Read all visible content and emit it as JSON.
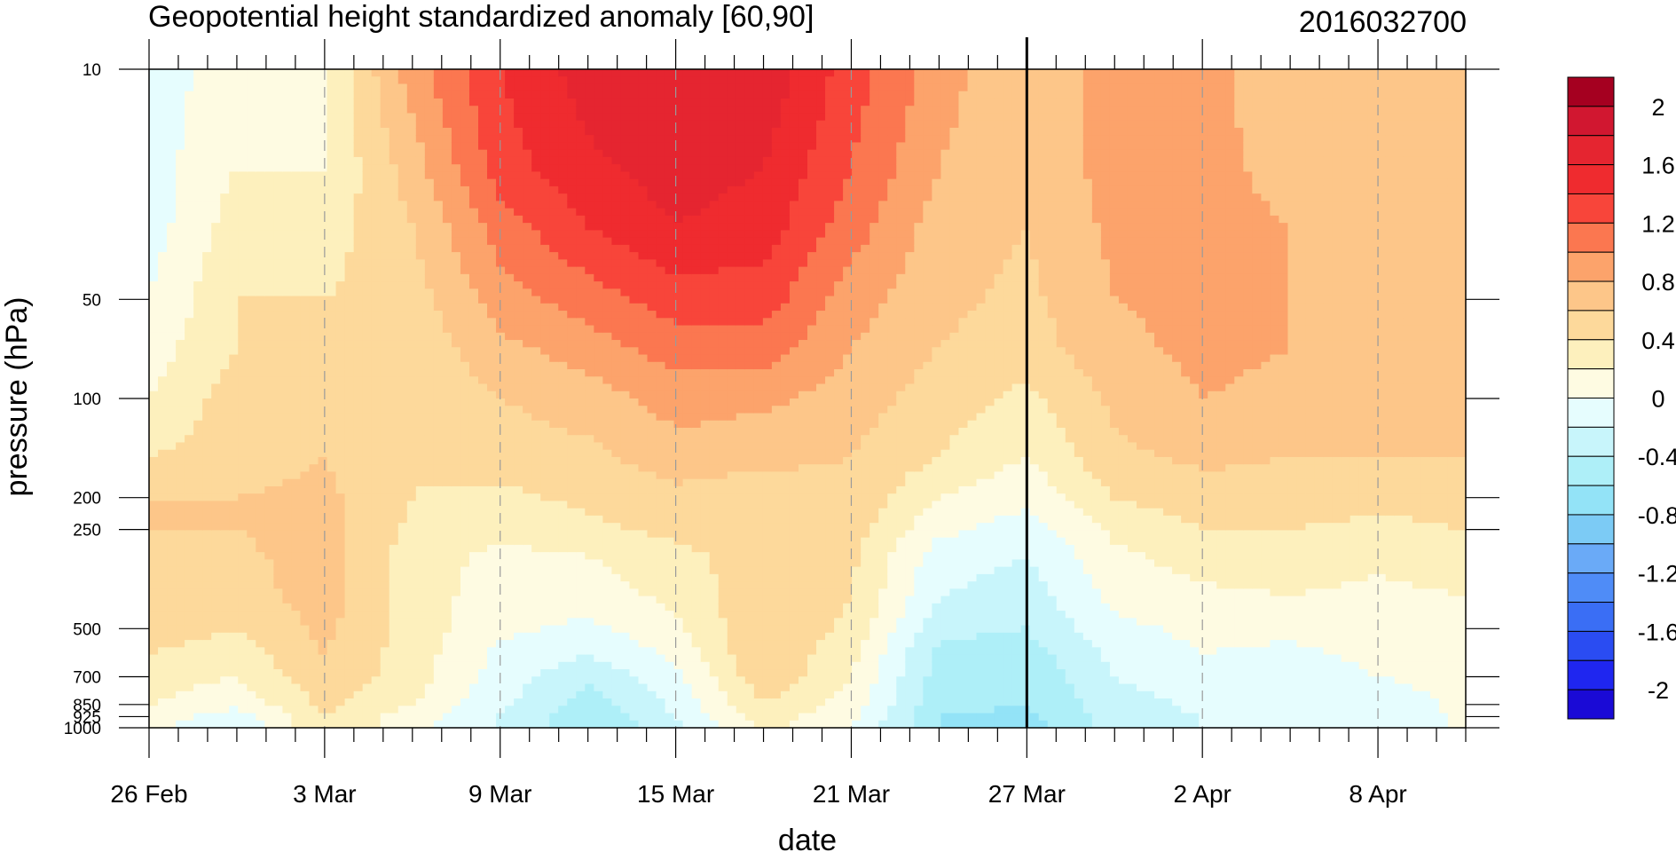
{
  "chart_data": {
    "type": "heatmap",
    "title": "Geopotential height standardized anomaly [60,90]",
    "subtitle": "2016032700",
    "xlabel": "date",
    "ylabel": "pressure (hPa)",
    "y_scale": "log",
    "y_reversed": true,
    "ylim": [
      1000,
      10
    ],
    "xlim": [
      "2016-02-26",
      "2016-04-11"
    ],
    "grid": "dashed vertical lines at labelled dates",
    "marker_date": "2016-03-27",
    "x_tick_labels": [
      {
        "date": "2016-02-26",
        "label": "26 Feb"
      },
      {
        "date": "2016-03-03",
        "label": "3 Mar"
      },
      {
        "date": "2016-03-09",
        "label": "9 Mar"
      },
      {
        "date": "2016-03-15",
        "label": "15 Mar"
      },
      {
        "date": "2016-03-21",
        "label": "21 Mar"
      },
      {
        "date": "2016-03-27",
        "label": "27 Mar"
      },
      {
        "date": "2016-04-02",
        "label": "2 Apr"
      },
      {
        "date": "2016-04-08",
        "label": "8 Apr"
      }
    ],
    "y_tick_labels": [
      {
        "p": 10,
        "label": "10"
      },
      {
        "p": 50,
        "label": "50"
      },
      {
        "p": 100,
        "label": "100"
      },
      {
        "p": 200,
        "label": "200"
      },
      {
        "p": 250,
        "label": "250"
      },
      {
        "p": 500,
        "label": "500"
      },
      {
        "p": 700,
        "label": "700"
      },
      {
        "p": 850,
        "label": "850"
      },
      {
        "p": 925,
        "label": "925"
      },
      {
        "p": 1000,
        "label": "1000"
      }
    ],
    "colorbar": {
      "placement": "right",
      "levels": [
        -2.2,
        -2.0,
        -1.8,
        -1.6,
        -1.4,
        -1.2,
        -1.0,
        -0.8,
        -0.6,
        -0.4,
        -0.2,
        0.0,
        0.2,
        0.4,
        0.6,
        0.8,
        1.0,
        1.2,
        1.4,
        1.6,
        1.8,
        2.0,
        2.2
      ],
      "colors": [
        "#1a0ad6",
        "#1f26f0",
        "#2a4cf2",
        "#3a6ef5",
        "#4f8cf7",
        "#6aaaf7",
        "#7ccbf5",
        "#93e3f7",
        "#aeeff8",
        "#c8f5fb",
        "#e6fdfe",
        "#fefbe2",
        "#fdf0bd",
        "#fdd99b",
        "#fdc689",
        "#fca36b",
        "#fb7750",
        "#f8453a",
        "#ef2b2f",
        "#e52530",
        "#d11730",
        "#a50020"
      ],
      "labels": [
        {
          "value": 2.0,
          "label": "2"
        },
        {
          "value": 1.6,
          "label": "1.6"
        },
        {
          "value": 1.2,
          "label": "1.2"
        },
        {
          "value": 0.8,
          "label": "0.8"
        },
        {
          "value": 0.4,
          "label": "0.4"
        },
        {
          "value": 0.0,
          "label": "0"
        },
        {
          "value": -0.4,
          "label": "-0.4"
        },
        {
          "value": -0.8,
          "label": "-0.8"
        },
        {
          "value": -1.2,
          "label": "-1.2"
        },
        {
          "value": -1.6,
          "label": "-1.6"
        },
        {
          "value": -2.0,
          "label": "-2"
        }
      ]
    },
    "pressure_levels": [
      10,
      20,
      30,
      50,
      70,
      100,
      150,
      200,
      250,
      300,
      400,
      500,
      600,
      700,
      850,
      925,
      1000
    ],
    "anomaly_profiles": [
      {
        "date": "2016-02-26",
        "values": [
          -0.1,
          -0.1,
          -0.1,
          0.0,
          0.1,
          0.2,
          0.4,
          0.6,
          0.6,
          0.6,
          0.6,
          0.5,
          0.4,
          0.3,
          0.2,
          0.1,
          0.05
        ]
      },
      {
        "date": "2016-02-29",
        "values": [
          0.1,
          0.2,
          0.3,
          0.4,
          0.4,
          0.5,
          0.5,
          0.6,
          0.6,
          0.55,
          0.5,
          0.4,
          0.3,
          0.2,
          0.05,
          -0.1,
          -0.2
        ]
      },
      {
        "date": "2016-03-03",
        "values": [
          0.2,
          0.2,
          0.3,
          0.4,
          0.45,
          0.5,
          0.6,
          0.65,
          0.7,
          0.7,
          0.7,
          0.65,
          0.6,
          0.55,
          0.45,
          0.4,
          0.4
        ]
      },
      {
        "date": "2016-03-06",
        "values": [
          0.9,
          0.7,
          0.6,
          0.5,
          0.45,
          0.4,
          0.4,
          0.4,
          0.35,
          0.3,
          0.3,
          0.3,
          0.3,
          0.3,
          0.2,
          0.1,
          0.05
        ]
      },
      {
        "date": "2016-03-09",
        "values": [
          1.4,
          1.3,
          1.1,
          0.9,
          0.75,
          0.6,
          0.5,
          0.35,
          0.25,
          0.15,
          0.1,
          0.05,
          -0.05,
          -0.1,
          -0.15,
          -0.2,
          -0.2
        ]
      },
      {
        "date": "2016-03-12",
        "values": [
          1.7,
          1.55,
          1.4,
          1.1,
          0.9,
          0.7,
          0.55,
          0.45,
          0.35,
          0.2,
          0.1,
          -0.05,
          -0.2,
          -0.35,
          -0.5,
          -0.55,
          -0.6
        ]
      },
      {
        "date": "2016-03-15",
        "values": [
          1.8,
          1.7,
          1.6,
          1.3,
          1.1,
          0.9,
          0.7,
          0.55,
          0.45,
          0.35,
          0.25,
          0.15,
          0.05,
          -0.05,
          -0.15,
          -0.2,
          -0.25
        ]
      },
      {
        "date": "2016-03-18",
        "values": [
          1.75,
          1.6,
          1.5,
          1.3,
          1.1,
          0.85,
          0.65,
          0.5,
          0.45,
          0.5,
          0.55,
          0.6,
          0.6,
          0.55,
          0.4,
          0.3,
          0.25
        ]
      },
      {
        "date": "2016-03-21",
        "values": [
          1.3,
          1.2,
          1.1,
          0.9,
          0.8,
          0.7,
          0.6,
          0.55,
          0.5,
          0.45,
          0.4,
          0.35,
          0.25,
          0.2,
          0.1,
          0.05,
          0.0
        ]
      },
      {
        "date": "2016-03-24",
        "values": [
          0.9,
          0.8,
          0.7,
          0.65,
          0.6,
          0.5,
          0.4,
          0.2,
          0.05,
          -0.1,
          -0.2,
          -0.35,
          -0.45,
          -0.5,
          -0.55,
          -0.6,
          -0.6
        ]
      },
      {
        "date": "2016-03-27",
        "values": [
          0.6,
          0.6,
          0.6,
          0.55,
          0.5,
          0.35,
          0.2,
          0.05,
          -0.1,
          -0.2,
          -0.3,
          -0.4,
          -0.5,
          -0.55,
          -0.6,
          -0.65,
          -0.7
        ]
      },
      {
        "date": "2016-03-30",
        "values": [
          0.9,
          0.9,
          0.85,
          0.8,
          0.75,
          0.65,
          0.55,
          0.4,
          0.25,
          0.15,
          0.05,
          -0.05,
          -0.15,
          -0.2,
          -0.3,
          -0.3,
          -0.3
        ]
      },
      {
        "date": "2016-04-02",
        "values": [
          0.85,
          0.85,
          0.85,
          0.85,
          0.85,
          0.8,
          0.65,
          0.5,
          0.4,
          0.3,
          0.15,
          0.05,
          0.0,
          -0.05,
          -0.15,
          -0.2,
          -0.2
        ]
      },
      {
        "date": "2016-04-05",
        "values": [
          0.7,
          0.75,
          0.8,
          0.8,
          0.8,
          0.75,
          0.6,
          0.5,
          0.4,
          0.3,
          0.2,
          0.05,
          -0.05,
          -0.1,
          -0.15,
          -0.2,
          -0.2
        ]
      },
      {
        "date": "2016-04-08",
        "values": [
          0.65,
          0.7,
          0.7,
          0.75,
          0.8,
          0.7,
          0.6,
          0.45,
          0.35,
          0.25,
          0.15,
          0.1,
          0.05,
          0.0,
          -0.1,
          -0.15,
          -0.15
        ]
      },
      {
        "date": "2016-04-11",
        "values": [
          0.6,
          0.6,
          0.65,
          0.7,
          0.7,
          0.65,
          0.6,
          0.5,
          0.4,
          0.3,
          0.2,
          0.15,
          0.1,
          0.05,
          0.05,
          0.05,
          0.05
        ]
      }
    ]
  }
}
